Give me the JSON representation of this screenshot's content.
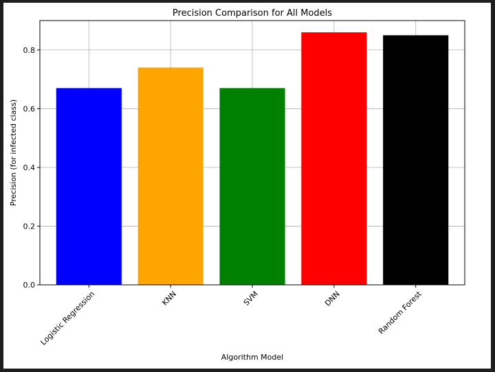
{
  "chart_data": {
    "type": "bar",
    "title": "Precision Comparison for All Models",
    "xlabel": "Algorithm Model",
    "ylabel": "Precision (for infected class)",
    "categories": [
      "Logistic Regression",
      "KNN",
      "SVM",
      "DNN",
      "Random Forest"
    ],
    "values": [
      0.67,
      0.74,
      0.67,
      0.86,
      0.85
    ],
    "colors": [
      "#0000ff",
      "#ffa500",
      "#008000",
      "#ff0000",
      "#000000"
    ],
    "ylim": [
      0,
      0.9
    ],
    "yticks": [
      0.0,
      0.2,
      0.4,
      0.6,
      0.8
    ],
    "ytick_labels": [
      "0.0",
      "0.2",
      "0.4",
      "0.6",
      "0.8"
    ],
    "grid": true,
    "x_tick_rotation": -45
  }
}
